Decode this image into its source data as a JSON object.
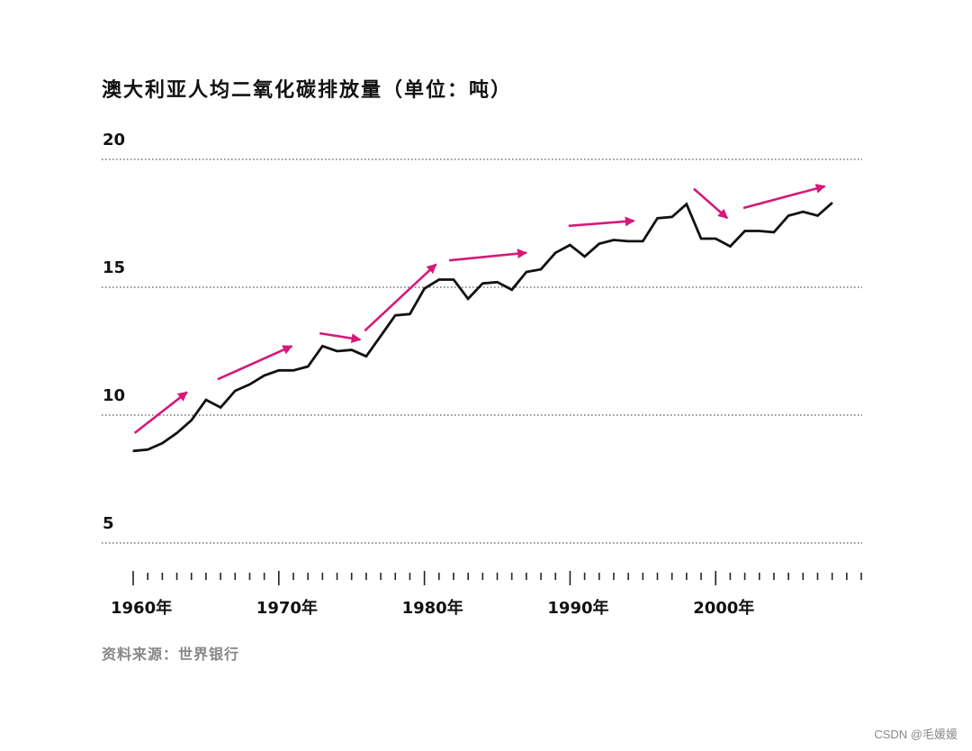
{
  "chart_data": {
    "type": "line",
    "title": "澳大利亚人均二氧化碳排放量（单位：吨）",
    "source": "资料来源：世界银行",
    "ylim": [
      2.5,
      20
    ],
    "y_ticks": [
      5,
      10,
      15,
      20
    ],
    "xlim": [
      1960,
      2010
    ],
    "x_ticks": [
      {
        "value": 1960,
        "label": "1960年"
      },
      {
        "value": 1970,
        "label": "1970年"
      },
      {
        "value": 1980,
        "label": "1980年"
      },
      {
        "value": 1990,
        "label": "1990年"
      },
      {
        "value": 2000,
        "label": "2000年"
      }
    ],
    "grid": "horizontal dotted",
    "series": [
      {
        "color": "#111111",
        "x": [
          1960,
          1961,
          1962,
          1963,
          1964,
          1965,
          1966,
          1967,
          1968,
          1969,
          1970,
          1971,
          1972,
          1973,
          1974,
          1975,
          1976,
          1977,
          1978,
          1979,
          1980,
          1981,
          1982,
          1983,
          1984,
          1985,
          1986,
          1987,
          1988,
          1989,
          1990,
          1991,
          1992,
          1993,
          1994,
          1995,
          1996,
          1997,
          1998,
          1999,
          2000,
          2001,
          2002,
          2003,
          2004,
          2005,
          2006,
          2007,
          2008
        ],
        "y": [
          8.6,
          8.65,
          8.9,
          9.3,
          9.8,
          10.6,
          10.3,
          10.95,
          11.2,
          11.55,
          11.75,
          11.75,
          11.9,
          12.7,
          12.5,
          12.55,
          12.3,
          13.1,
          13.9,
          13.95,
          14.95,
          15.3,
          15.3,
          14.55,
          15.15,
          15.2,
          14.9,
          15.6,
          15.7,
          16.35,
          16.65,
          16.2,
          16.7,
          16.85,
          16.8,
          16.8,
          17.7,
          17.75,
          18.25,
          16.9,
          16.9,
          16.6,
          17.2,
          17.2,
          17.15,
          17.8,
          17.95,
          17.8,
          18.3
        ]
      }
    ],
    "trend_arrows": {
      "color": "#d6187a",
      "segments": [
        {
          "x1": 1960.1,
          "y1": 9.3,
          "x2": 1963.7,
          "y2": 10.9
        },
        {
          "x1": 1965.8,
          "y1": 11.4,
          "x2": 1970.9,
          "y2": 12.7
        },
        {
          "x1": 1972.8,
          "y1": 13.2,
          "x2": 1975.6,
          "y2": 12.95
        },
        {
          "x1": 1975.9,
          "y1": 13.3,
          "x2": 1980.8,
          "y2": 15.9
        },
        {
          "x1": 1981.7,
          "y1": 16.05,
          "x2": 1987.0,
          "y2": 16.35
        },
        {
          "x1": 1989.9,
          "y1": 17.4,
          "x2": 1994.4,
          "y2": 17.6
        },
        {
          "x1": 1998.5,
          "y1": 18.85,
          "x2": 2000.8,
          "y2": 17.7
        },
        {
          "x1": 2001.9,
          "y1": 18.1,
          "x2": 2007.5,
          "y2": 18.95
        }
      ]
    }
  },
  "watermark": "CSDN @毛媛媛"
}
